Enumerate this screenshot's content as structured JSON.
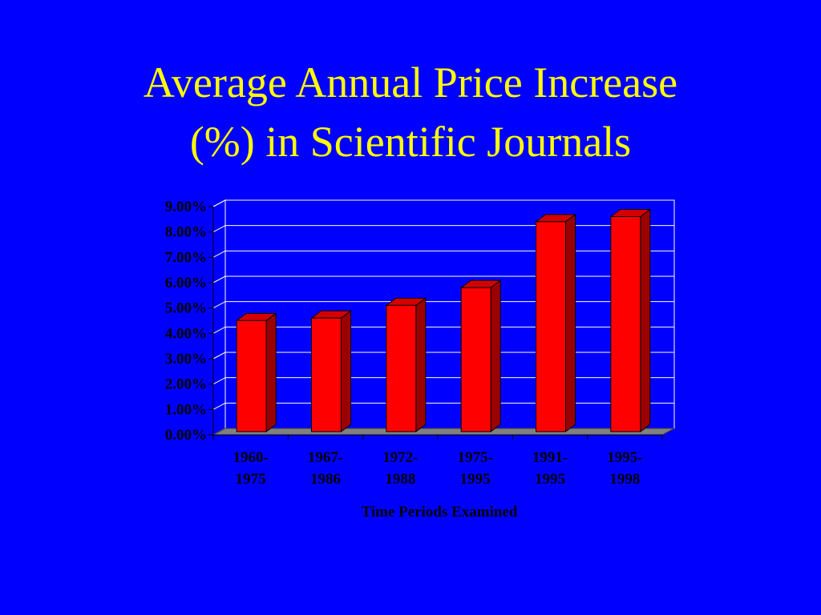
{
  "title": {
    "line1": "Average Annual Price Increase",
    "line2": "(%) in Scientific Journals"
  },
  "colors": {
    "background": "#0000ff",
    "title": "#ffff00",
    "bar_front": "#ff0000",
    "bar_side": "#9b0000",
    "bar_top": "#d40000",
    "floor": "#808080"
  },
  "chart_data": {
    "type": "bar",
    "categories": [
      [
        "1960-",
        "1975"
      ],
      [
        "1967-",
        "1986"
      ],
      [
        "1972-",
        "1988"
      ],
      [
        "1975-",
        "1995"
      ],
      [
        "1991-",
        "1995"
      ],
      [
        "1995-",
        "1998"
      ]
    ],
    "values": [
      4.6,
      4.7,
      5.2,
      5.9,
      8.5,
      8.7
    ],
    "xlabel": "Time Periods Examined",
    "ylabel": "",
    "ylim": [
      0,
      9
    ],
    "yticks": [
      "0.00%",
      "1.00%",
      "2.00%",
      "3.00%",
      "4.00%",
      "5.00%",
      "6.00%",
      "7.00%",
      "8.00%",
      "9.00%"
    ],
    "grid": true,
    "style": "3d-column"
  }
}
